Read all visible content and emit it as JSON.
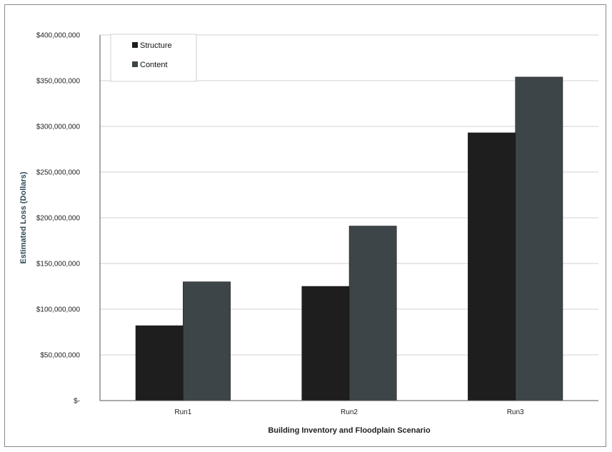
{
  "chart_data": {
    "type": "bar",
    "title": "",
    "xlabel": "Building Inventory and Floodplain Scenario",
    "ylabel": "Estimated Loss (Dollars)",
    "categories": [
      "Run1",
      "Run2",
      "Run3"
    ],
    "series": [
      {
        "name": "Structure",
        "values": [
          82000000,
          125000000,
          293000000
        ]
      },
      {
        "name": "Content",
        "values": [
          130000000,
          191000000,
          354000000
        ]
      }
    ],
    "ylim": [
      0,
      400000000
    ],
    "y_ticks": [
      0,
      50000000,
      100000000,
      150000000,
      200000000,
      250000000,
      300000000,
      350000000,
      400000000
    ],
    "y_tick_labels": [
      "$-",
      "$50,000,000",
      "$100,000,000",
      "$150,000,000",
      "$200,000,000",
      "$250,000,000",
      "$300,000,000",
      "$350,000,000",
      "$400,000,000"
    ],
    "grid": true,
    "legend_position": "top-left",
    "colors": {
      "Structure": "#1e1e1e",
      "Content": "#3d4548",
      "grid": "#d0d0d0",
      "axis": "#555555"
    }
  }
}
